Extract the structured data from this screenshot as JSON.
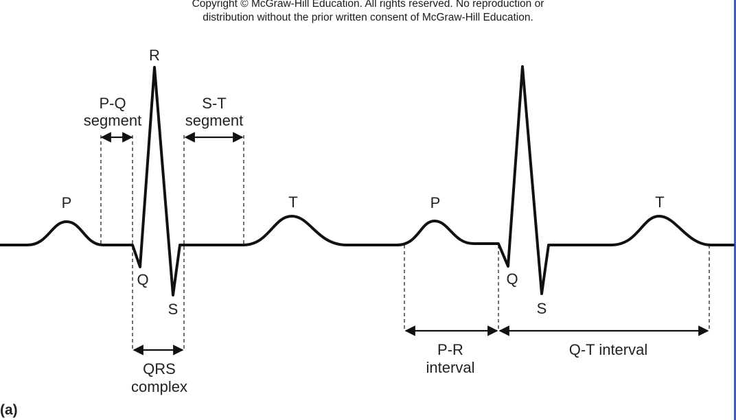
{
  "copyright": {
    "line1": "Copyright © McGraw-Hill Education.  All rights reserved. No reproduction or",
    "line2": "distribution without the prior written consent of McGraw-Hill Education."
  },
  "panel_label": "(a)",
  "waves": {
    "p1": "P",
    "q1": "Q",
    "r1": "R",
    "s1": "S",
    "t1": "T",
    "p2": "P",
    "q2": "Q",
    "s2": "S",
    "t2": "T"
  },
  "segments": {
    "pq_line1": "P-Q",
    "pq_line2": "segment",
    "st_line1": "S-T",
    "st_line2": "segment",
    "qrs_line1": "QRS",
    "qrs_line2": "complex",
    "pr_line1": "P-R",
    "pr_line2": "interval",
    "qt": "Q-T interval"
  },
  "colors": {
    "trace": "#111111",
    "border_accent": "#3b5cc4"
  }
}
